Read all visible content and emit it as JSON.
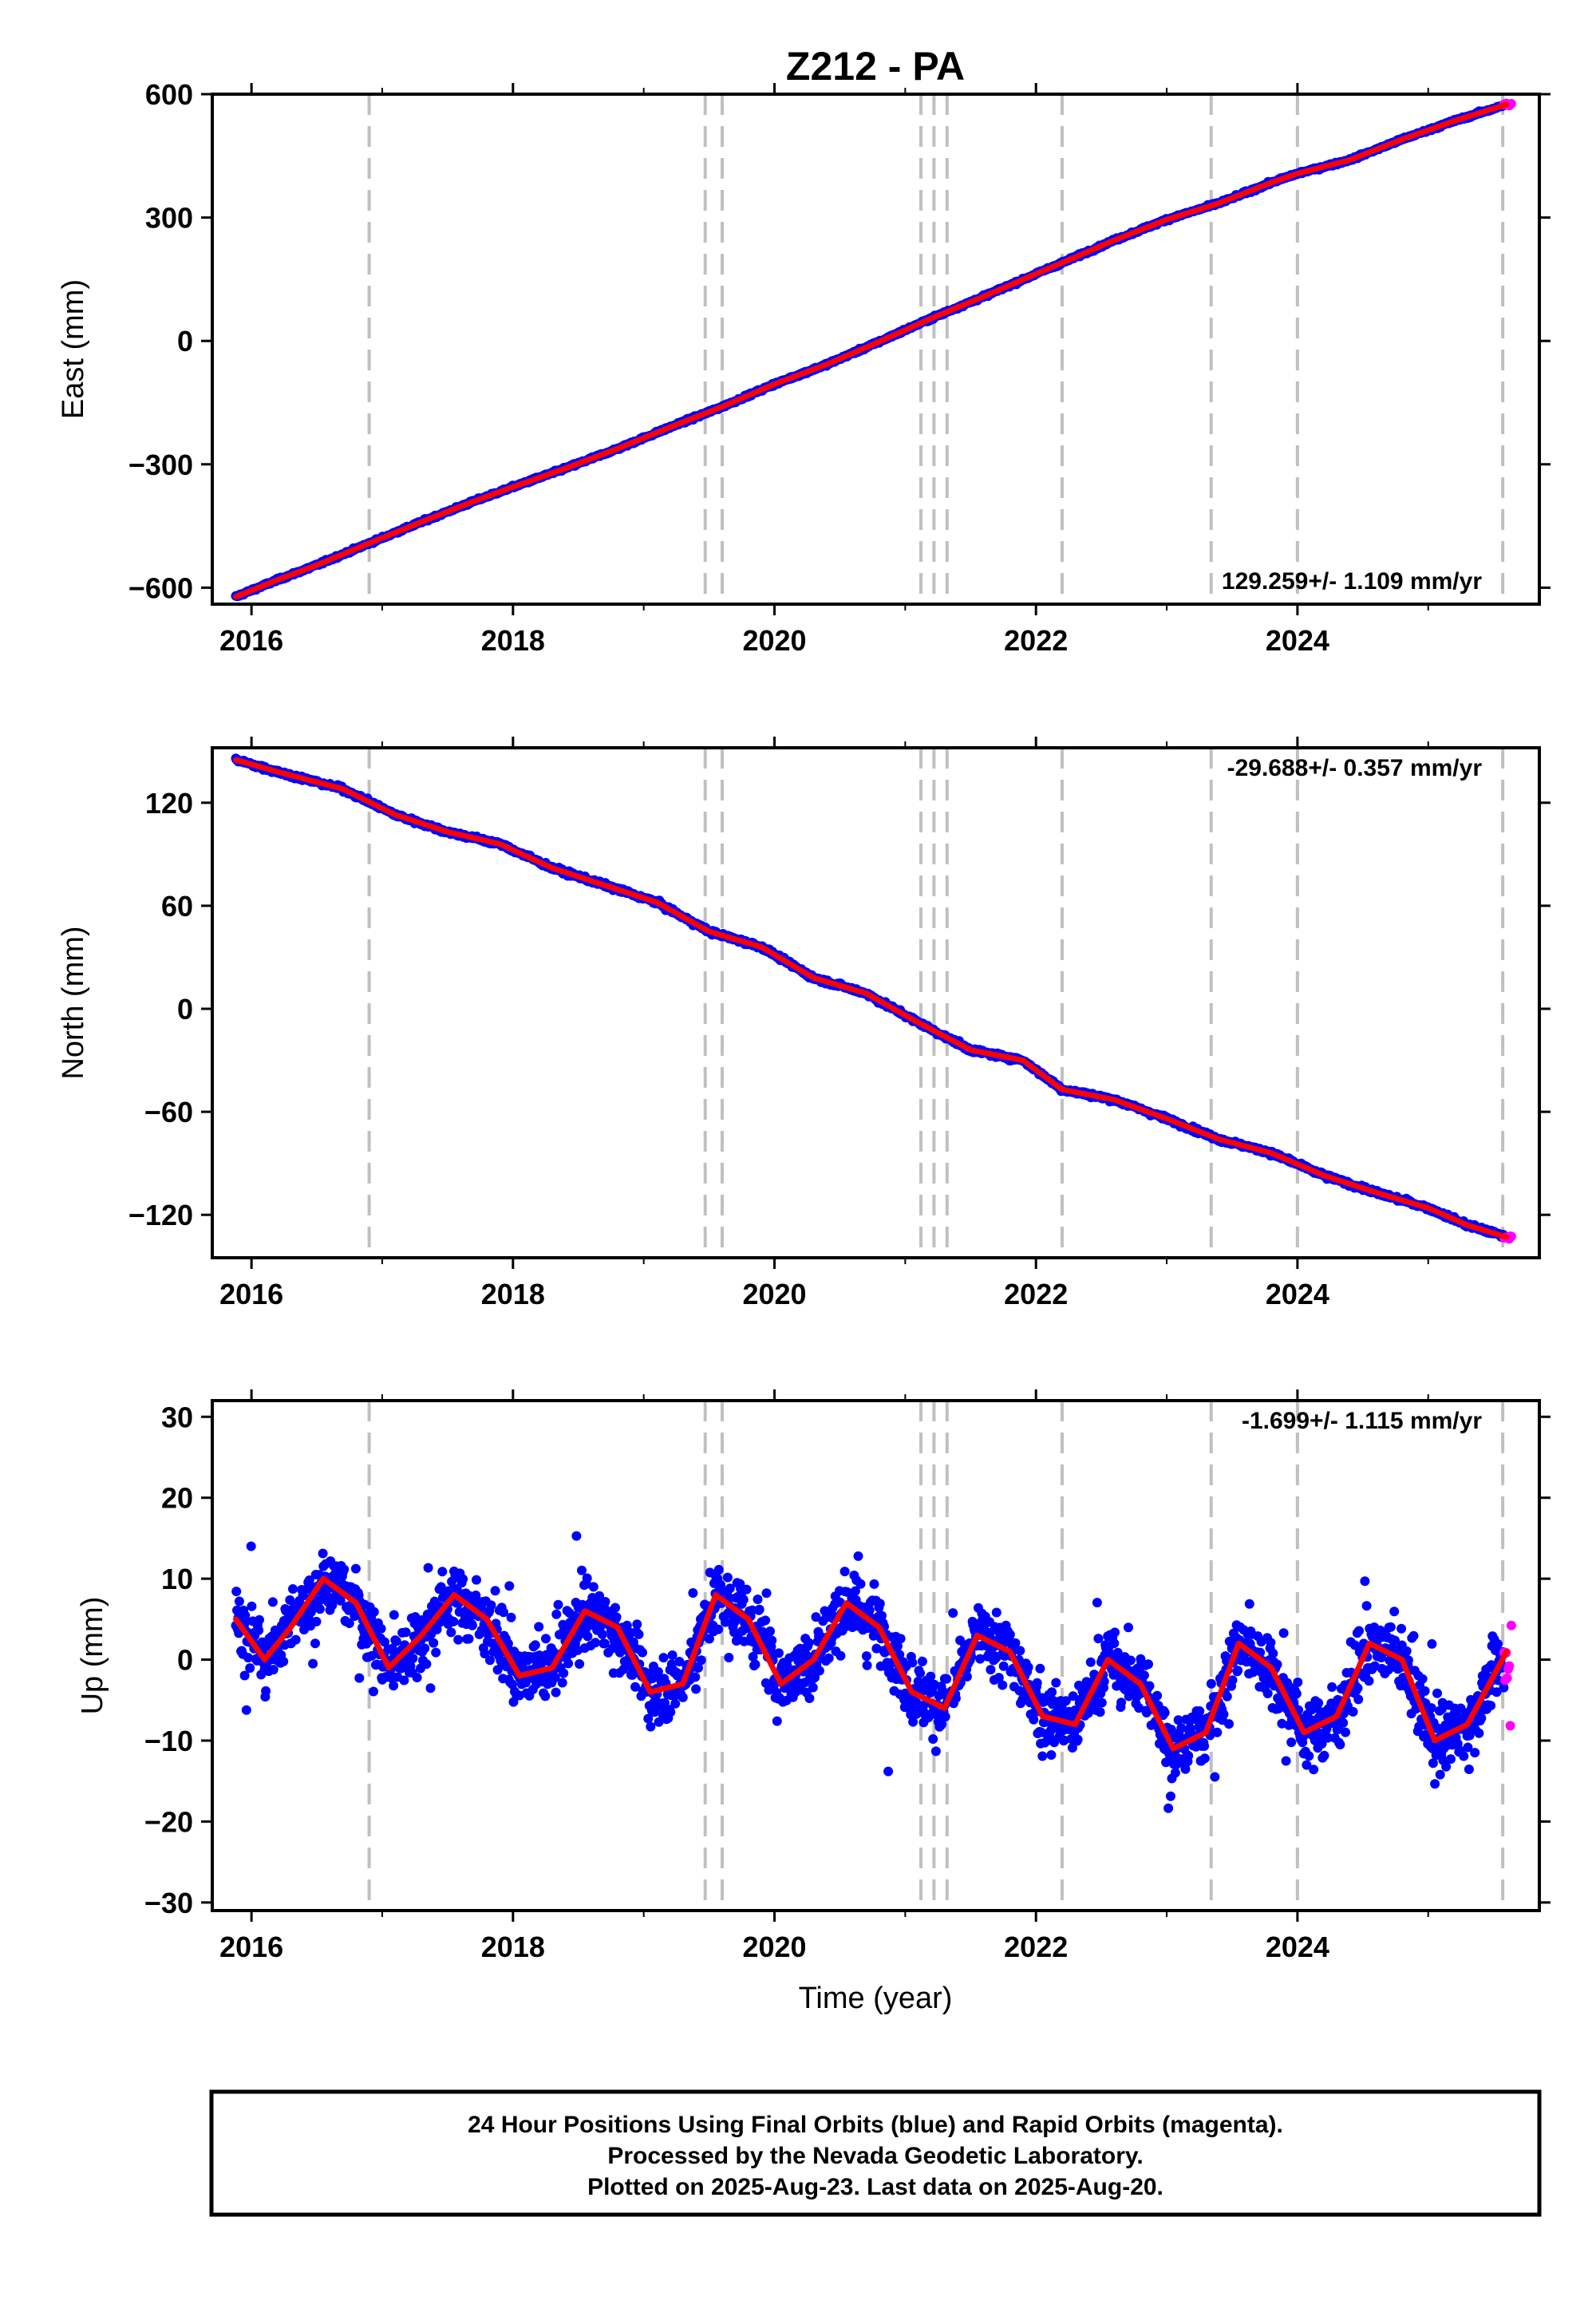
{
  "title": "Z212 - PA",
  "xlabel": "Time (year)",
  "footer": {
    "line1": "24 Hour Positions Using Final Orbits (blue) and Rapid Orbits (magenta).",
    "line2": "Processed by the Nevada Geodetic Laboratory.",
    "line3": "Plotted on 2025-Aug-23. Last data on 2025-Aug-20."
  },
  "colors": {
    "final": "#0000ff",
    "rapid": "#ff00ff",
    "model": "#ff0000",
    "gridline": "#c0c0c0"
  },
  "chart_data": [
    {
      "type": "scatter",
      "component": "east",
      "ylabel": "East (mm)",
      "rate": "129.259+/- 1.109 mm/yr",
      "xlim": [
        2015.7,
        2025.85
      ],
      "ylim": [
        -640,
        600
      ],
      "xticks": [
        2016,
        2018,
        2020,
        2022,
        2024
      ],
      "xtick_labels": [
        "2016",
        "2018",
        "2020",
        "2022",
        "2024"
      ],
      "yticks": [
        -600,
        -300,
        0,
        300,
        600
      ],
      "ytick_labels": [
        "−600",
        "−300",
        "0",
        "300",
        "600"
      ],
      "equipment_changes": [
        2016.9,
        2019.47,
        2019.6,
        2021.12,
        2021.22,
        2021.32,
        2022.2,
        2023.34,
        2024.0,
        2025.57
      ],
      "series": [
        {
          "x": [
            2015.88,
            2016.2,
            2016.5,
            2016.9,
            2017.3,
            2017.7,
            2018.0,
            2018.4,
            2018.8,
            2019.2,
            2019.6,
            2020.0,
            2020.4,
            2020.8,
            2021.2,
            2021.6,
            2022.0,
            2022.2,
            2022.6,
            2023.0,
            2023.4,
            2023.8,
            2024.0,
            2024.4,
            2024.8,
            2025.2,
            2025.6
          ],
          "y": [
            -622,
            -581,
            -545,
            -492,
            -440,
            -390,
            -355,
            -310,
            -262,
            -210,
            -160,
            -105,
            -57,
            -2,
            55,
            108,
            163,
            190,
            245,
            295,
            335,
            385,
            407,
            440,
            490,
            535,
            575
          ]
        }
      ]
    },
    {
      "type": "scatter",
      "component": "north",
      "ylabel": "North (mm)",
      "rate": "-29.688+/- 0.357 mm/yr",
      "xlim": [
        2015.7,
        2025.85
      ],
      "ylim": [
        -145,
        152
      ],
      "xticks": [
        2016,
        2018,
        2020,
        2022,
        2024
      ],
      "xtick_labels": [
        "2016",
        "2018",
        "2020",
        "2022",
        "2024"
      ],
      "yticks": [
        -120,
        -60,
        0,
        60,
        120
      ],
      "ytick_labels": [
        "−120",
        "−60",
        "0",
        "60",
        "120"
      ],
      "equipment_changes": [
        2016.9,
        2019.47,
        2019.6,
        2021.12,
        2021.22,
        2021.32,
        2022.2,
        2023.34,
        2024.0,
        2025.57
      ],
      "series": [
        {
          "x": [
            2015.88,
            2016.2,
            2016.7,
            2017.1,
            2017.5,
            2017.9,
            2018.3,
            2018.7,
            2019.1,
            2019.5,
            2019.9,
            2020.3,
            2020.7,
            2021.1,
            2021.5,
            2021.9,
            2022.2,
            2022.6,
            2023.0,
            2023.4,
            2023.8,
            2024.2,
            2024.6,
            2025.0,
            2025.3,
            2025.6
          ],
          "y": [
            145,
            138,
            128,
            113,
            103,
            96,
            82,
            72,
            62,
            45,
            36,
            18,
            9,
            -8,
            -24,
            -30,
            -47,
            -53,
            -64,
            -76,
            -84,
            -97,
            -107,
            -116,
            -126,
            -133
          ]
        }
      ]
    },
    {
      "type": "scatter",
      "component": "up",
      "ylabel": "Up (mm)",
      "rate": "-1.699+/- 1.115 mm/yr",
      "xlim": [
        2015.7,
        2025.85
      ],
      "ylim": [
        -31,
        32
      ],
      "xticks": [
        2016,
        2018,
        2020,
        2022,
        2024
      ],
      "xtick_labels": [
        "2016",
        "2018",
        "2020",
        "2022",
        "2024"
      ],
      "yticks": [
        -30,
        -20,
        -10,
        0,
        10,
        20,
        30
      ],
      "ytick_labels": [
        "−30",
        "−20",
        "−10",
        "0",
        "10",
        "20",
        "30"
      ],
      "equipment_changes": [
        2016.9,
        2019.47,
        2019.6,
        2021.12,
        2021.22,
        2021.32,
        2022.2,
        2023.34,
        2024.0,
        2025.57
      ],
      "series": [
        {
          "x": [
            2015.88,
            2016.1,
            2016.3,
            2016.55,
            2016.8,
            2017.05,
            2017.3,
            2017.55,
            2017.8,
            2018.05,
            2018.3,
            2018.55,
            2018.8,
            2019.05,
            2019.3,
            2019.55,
            2019.8,
            2020.05,
            2020.3,
            2020.55,
            2020.8,
            2021.05,
            2021.3,
            2021.55,
            2021.8,
            2022.05,
            2022.3,
            2022.55,
            2022.8,
            2023.05,
            2023.3,
            2023.55,
            2023.8,
            2024.05,
            2024.3,
            2024.55,
            2024.8,
            2025.05,
            2025.3,
            2025.6
          ],
          "y": [
            5,
            0,
            4,
            10,
            7,
            -1,
            3,
            8,
            5,
            -2,
            -1,
            6,
            4,
            -4,
            -3,
            8,
            5,
            -3,
            0,
            7,
            4,
            -4,
            -6,
            3,
            1,
            -7,
            -8,
            0,
            -3,
            -11,
            -9,
            2,
            -1,
            -9,
            -7,
            2,
            0,
            -10,
            -8,
            1
          ]
        }
      ]
    }
  ]
}
